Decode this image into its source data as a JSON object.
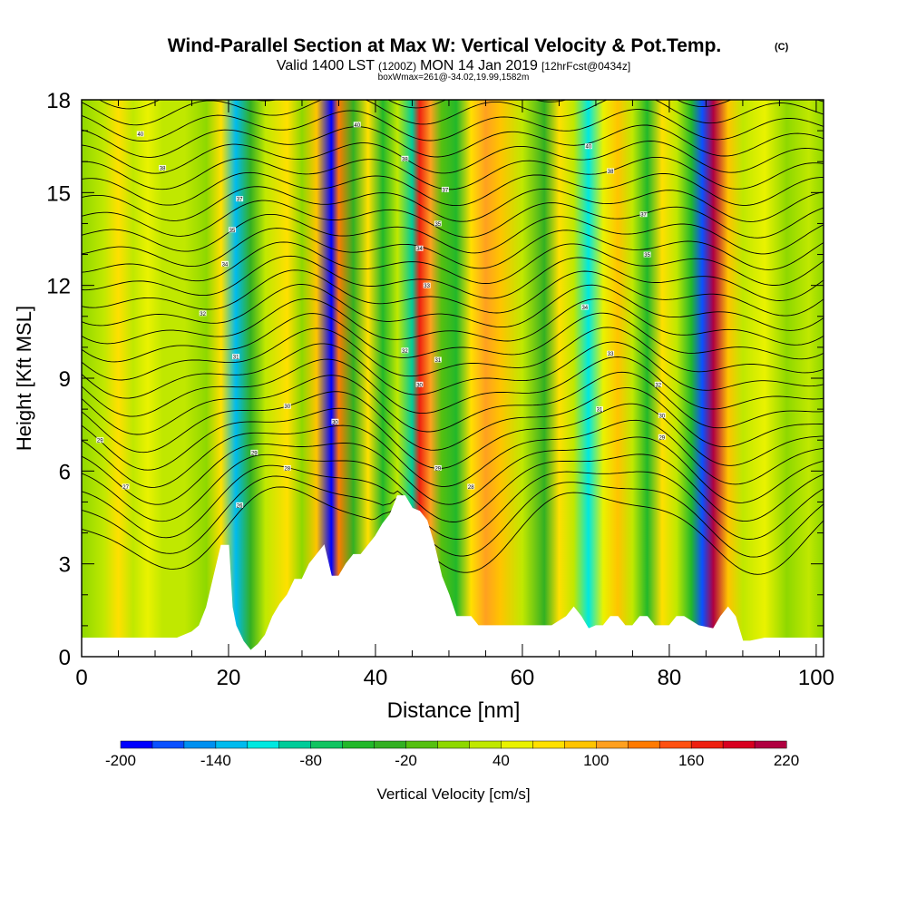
{
  "chart_data": {
    "type": "heatmap",
    "title": "Wind-Parallel Section at Max W: Vertical Velocity & Pot.Temp.",
    "title_mark": "(C)",
    "subtitle_a": "Valid 1400 LST",
    "subtitle_b": "(1200Z)",
    "subtitle_c": "MON 14 Jan 2019",
    "subtitle_d": "[12hrFcst@0434z]",
    "subtitle2": "boxWmax=261@-34.02,19.99,1582m",
    "xlabel": "Distance [nm]",
    "ylabel": "Height [Kft MSL]",
    "xlim": [
      0,
      101
    ],
    "ylim": [
      0,
      18
    ],
    "xticks": [
      0,
      20,
      40,
      60,
      80,
      100
    ],
    "yticks": [
      0,
      3,
      6,
      9,
      12,
      15,
      18
    ],
    "colorbar": {
      "label": "Vertical Velocity [cm/s]",
      "bins": [
        -200,
        -180,
        -160,
        -140,
        -120,
        -100,
        -80,
        -60,
        -40,
        -20,
        0,
        20,
        40,
        60,
        80,
        100,
        120,
        140,
        160,
        180,
        200,
        220
      ],
      "colors": [
        "#0000ff",
        "#0a50ff",
        "#0090f0",
        "#00bbee",
        "#00e8e0",
        "#00cc99",
        "#11c460",
        "#22b82a",
        "#33b022",
        "#55c010",
        "#8ed800",
        "#c0e800",
        "#eaf200",
        "#ffe000",
        "#ffc400",
        "#ffa020",
        "#ff7a00",
        "#ff5010",
        "#ee2010",
        "#d80020",
        "#b00040"
      ],
      "tick_labels": [
        "-200",
        "-140",
        "-80",
        "-20",
        "40",
        "100",
        "160",
        "220"
      ],
      "tick_values": [
        -200,
        -140,
        -80,
        -20,
        40,
        100,
        160,
        220
      ]
    },
    "bands": [
      {
        "x": 0,
        "w": 0
      },
      {
        "x": 3,
        "w": 30
      },
      {
        "x": 5,
        "w": 60
      },
      {
        "x": 7,
        "w": 20
      },
      {
        "x": 9,
        "w": 40
      },
      {
        "x": 11,
        "w": 30
      },
      {
        "x": 14,
        "w": 20
      },
      {
        "x": 17,
        "w": 10
      },
      {
        "x": 19,
        "w": 60
      },
      {
        "x": 21,
        "w": -130
      },
      {
        "x": 23,
        "w": -30
      },
      {
        "x": 25,
        "w": 30
      },
      {
        "x": 28,
        "w": 60
      },
      {
        "x": 30,
        "w": 10
      },
      {
        "x": 32,
        "w": 80
      },
      {
        "x": 34,
        "w": -190
      },
      {
        "x": 35,
        "w": 120
      },
      {
        "x": 37,
        "w": -40
      },
      {
        "x": 39,
        "w": 60
      },
      {
        "x": 41,
        "w": -60
      },
      {
        "x": 43,
        "w": 20
      },
      {
        "x": 45,
        "w": -90
      },
      {
        "x": 46,
        "w": 170
      },
      {
        "x": 47.5,
        "w": 110
      },
      {
        "x": 49,
        "w": -20
      },
      {
        "x": 51,
        "w": -60
      },
      {
        "x": 53,
        "w": 60
      },
      {
        "x": 55,
        "w": 110
      },
      {
        "x": 57,
        "w": 80
      },
      {
        "x": 60,
        "w": 30
      },
      {
        "x": 63,
        "w": -40
      },
      {
        "x": 65,
        "w": 60
      },
      {
        "x": 67,
        "w": 20
      },
      {
        "x": 69,
        "w": -110
      },
      {
        "x": 71,
        "w": 40
      },
      {
        "x": 73,
        "w": 80
      },
      {
        "x": 75,
        "w": 30
      },
      {
        "x": 77,
        "w": -50
      },
      {
        "x": 79,
        "w": 60
      },
      {
        "x": 81,
        "w": 20
      },
      {
        "x": 83,
        "w": -60
      },
      {
        "x": 84.5,
        "w": -180
      },
      {
        "x": 86,
        "w": 200
      },
      {
        "x": 88,
        "w": 80
      },
      {
        "x": 90,
        "w": 20
      },
      {
        "x": 93,
        "w": 50
      },
      {
        "x": 96,
        "w": 0
      },
      {
        "x": 99,
        "w": 30
      },
      {
        "x": 101,
        "w": 10
      }
    ],
    "terrain": [
      [
        0,
        0.6
      ],
      [
        5,
        0.6
      ],
      [
        10,
        0.6
      ],
      [
        13,
        0.6
      ],
      [
        15,
        0.8
      ],
      [
        16,
        1.0
      ],
      [
        17,
        1.6
      ],
      [
        18,
        2.6
      ],
      [
        19,
        3.6
      ],
      [
        20,
        3.6
      ],
      [
        20.5,
        1.6
      ],
      [
        21,
        1.0
      ],
      [
        22,
        0.5
      ],
      [
        23,
        0.2
      ],
      [
        24,
        0.4
      ],
      [
        25,
        0.7
      ],
      [
        26,
        1.3
      ],
      [
        27,
        1.7
      ],
      [
        28,
        2.0
      ],
      [
        29,
        2.5
      ],
      [
        30,
        2.5
      ],
      [
        31,
        3.0
      ],
      [
        32,
        3.3
      ],
      [
        33,
        3.6
      ],
      [
        34,
        2.6
      ],
      [
        35,
        2.6
      ],
      [
        36,
        3.0
      ],
      [
        37,
        3.3
      ],
      [
        38,
        3.3
      ],
      [
        39,
        3.6
      ],
      [
        40,
        3.9
      ],
      [
        41,
        4.3
      ],
      [
        42,
        4.6
      ],
      [
        43,
        5.2
      ],
      [
        44,
        5.2
      ],
      [
        45,
        4.8
      ],
      [
        46,
        4.7
      ],
      [
        47,
        4.4
      ],
      [
        48,
        3.6
      ],
      [
        49,
        2.6
      ],
      [
        50,
        2.0
      ],
      [
        51,
        1.3
      ],
      [
        52,
        1.3
      ],
      [
        53,
        1.3
      ],
      [
        54,
        1.0
      ],
      [
        55,
        1.0
      ],
      [
        56,
        1.0
      ],
      [
        58,
        1.0
      ],
      [
        60,
        1.0
      ],
      [
        62,
        1.0
      ],
      [
        64,
        1.0
      ],
      [
        66,
        1.3
      ],
      [
        67,
        1.6
      ],
      [
        68,
        1.3
      ],
      [
        69,
        0.9
      ],
      [
        70,
        1.0
      ],
      [
        71,
        1.0
      ],
      [
        72,
        1.3
      ],
      [
        73,
        1.3
      ],
      [
        74,
        1.0
      ],
      [
        75,
        1.0
      ],
      [
        76,
        1.3
      ],
      [
        77,
        1.3
      ],
      [
        78,
        1.0
      ],
      [
        80,
        1.0
      ],
      [
        81,
        1.3
      ],
      [
        82,
        1.3
      ],
      [
        84,
        1.0
      ],
      [
        86,
        0.9
      ],
      [
        87,
        1.3
      ],
      [
        88,
        1.6
      ],
      [
        89,
        1.3
      ],
      [
        90,
        0.5
      ],
      [
        91,
        0.5
      ],
      [
        93,
        0.6
      ],
      [
        96,
        0.6
      ],
      [
        99,
        0.6
      ],
      [
        101,
        0.6
      ]
    ],
    "contour_labels": [
      {
        "x": 8,
        "y": 16.9,
        "text": "40"
      },
      {
        "x": 11,
        "y": 15.8,
        "text": "38"
      },
      {
        "x": 21.5,
        "y": 14.8,
        "text": "37"
      },
      {
        "x": 20.5,
        "y": 13.8,
        "text": "35"
      },
      {
        "x": 19.5,
        "y": 12.7,
        "text": "34"
      },
      {
        "x": 16.5,
        "y": 11.1,
        "text": "32"
      },
      {
        "x": 21,
        "y": 9.7,
        "text": "31"
      },
      {
        "x": 28,
        "y": 8.1,
        "text": "30"
      },
      {
        "x": 2.5,
        "y": 7.0,
        "text": "29"
      },
      {
        "x": 23.5,
        "y": 6.6,
        "text": "29"
      },
      {
        "x": 28,
        "y": 6.1,
        "text": "28"
      },
      {
        "x": 6,
        "y": 5.5,
        "text": "27"
      },
      {
        "x": 21.5,
        "y": 4.9,
        "text": "26"
      },
      {
        "x": 34.5,
        "y": 7.6,
        "text": "30"
      },
      {
        "x": 37.5,
        "y": 17.2,
        "text": "40"
      },
      {
        "x": 44,
        "y": 16.1,
        "text": "38"
      },
      {
        "x": 49.5,
        "y": 15.1,
        "text": "37"
      },
      {
        "x": 48.5,
        "y": 14.0,
        "text": "35"
      },
      {
        "x": 46,
        "y": 13.2,
        "text": "34"
      },
      {
        "x": 47,
        "y": 12.0,
        "text": "33"
      },
      {
        "x": 44,
        "y": 9.9,
        "text": "32"
      },
      {
        "x": 48.5,
        "y": 9.6,
        "text": "31"
      },
      {
        "x": 46,
        "y": 8.8,
        "text": "30"
      },
      {
        "x": 48.5,
        "y": 6.1,
        "text": "29"
      },
      {
        "x": 53,
        "y": 5.5,
        "text": "28"
      },
      {
        "x": 69,
        "y": 16.5,
        "text": "40"
      },
      {
        "x": 72,
        "y": 15.7,
        "text": "38"
      },
      {
        "x": 76.5,
        "y": 14.3,
        "text": "37"
      },
      {
        "x": 77,
        "y": 13.0,
        "text": "35"
      },
      {
        "x": 68.5,
        "y": 11.3,
        "text": "34"
      },
      {
        "x": 72,
        "y": 9.8,
        "text": "33"
      },
      {
        "x": 78.5,
        "y": 8.8,
        "text": "32"
      },
      {
        "x": 70.5,
        "y": 8.0,
        "text": "31"
      },
      {
        "x": 79,
        "y": 7.8,
        "text": "30"
      },
      {
        "x": 79,
        "y": 7.1,
        "text": "29"
      }
    ]
  }
}
